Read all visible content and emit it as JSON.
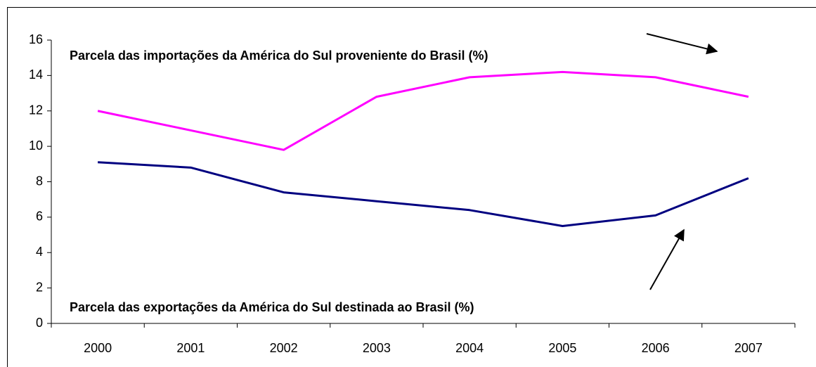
{
  "chart_data": {
    "type": "line",
    "categories": [
      "2000",
      "2001",
      "2002",
      "2003",
      "2004",
      "2005",
      "2006",
      "2007"
    ],
    "series": [
      {
        "name": "Parcela das importações da América do Sul proveniente do Brasil (%)",
        "color": "#ff00ff",
        "values": [
          12.0,
          10.9,
          9.8,
          12.8,
          13.9,
          14.2,
          13.9,
          12.8
        ]
      },
      {
        "name": "Parcela das exportações da América do Sul destinada ao Brasil (%)",
        "color": "#000080",
        "values": [
          9.1,
          8.8,
          7.4,
          6.9,
          6.4,
          5.5,
          6.1,
          8.2
        ]
      }
    ],
    "ylim": [
      0,
      16
    ],
    "yticks": [
      0,
      2,
      4,
      6,
      8,
      10,
      12,
      14,
      16
    ],
    "grid": false
  }
}
